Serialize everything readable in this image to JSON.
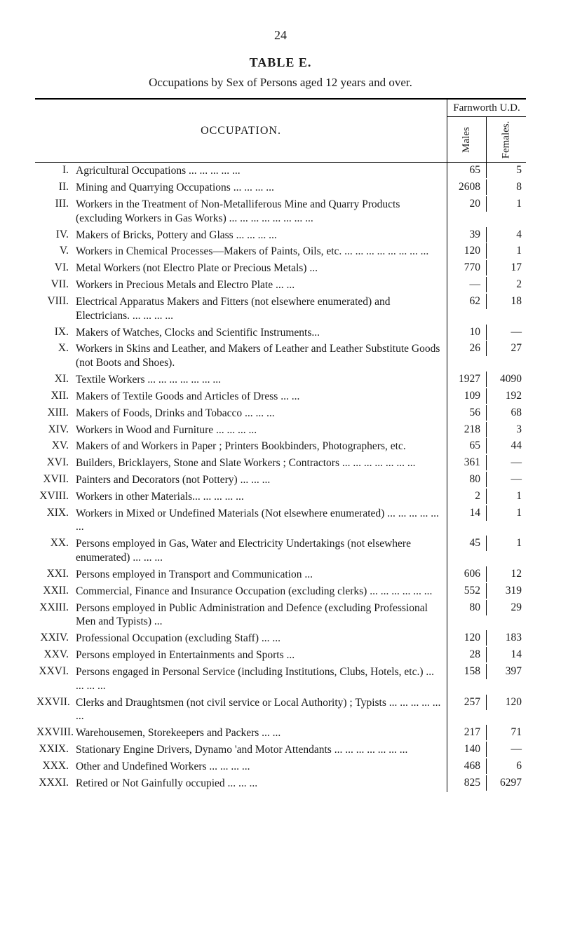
{
  "page": {
    "number": "24",
    "table_name": "TABLE  E.",
    "caption": "Occupations by Sex of Persons aged 12 years and over."
  },
  "headers": {
    "occupation": "OCCUPATION.",
    "region": "Farnworth U.D.",
    "males": "Males",
    "females": "Females."
  },
  "layout": {
    "col_widths": {
      "roman": 56,
      "males": 56,
      "females": 56
    },
    "font_size_body": 15.5,
    "font_family": "Times New Roman",
    "border_color": "#000000",
    "background_color": "#ffffff"
  },
  "rows": [
    {
      "n": "I.",
      "t": "Agricultural Occupations  ...  ...  ...  ...  ...",
      "m": "65",
      "f": "5"
    },
    {
      "n": "II.",
      "t": "Mining and Quarrying Occupations ...  ...  ...  ...",
      "m": "2608",
      "f": "8"
    },
    {
      "n": "III.",
      "t": "Workers in the Treatment of Non-Metalliferous Mine and Quarry Products (excluding Workers in Gas Works) ...  ...  ...  ...  ...  ...  ...  ...",
      "m": "20",
      "f": "1"
    },
    {
      "n": "IV.",
      "t": "Makers of Bricks, Pottery and Glass ...  ...  ...  ...",
      "m": "39",
      "f": "4"
    },
    {
      "n": "V.",
      "t": "Workers in Chemical Processes—Makers of Paints, Oils, etc.  ...  ...  ...  ...  ...  ...  ...  ...",
      "m": "120",
      "f": "1"
    },
    {
      "n": "VI.",
      "t": "Metal Workers (not Electro Plate or Precious Metals)  ...",
      "m": "770",
      "f": "17"
    },
    {
      "n": "VII.",
      "t": "Workers in Precious Metals and Electro Plate  ...  ...",
      "m": "—",
      "f": "2"
    },
    {
      "n": "VIII.",
      "t": "Electrical Apparatus Makers and Fitters (not elsewhere enumerated) and Electricians.  ...  ...  ...  ...",
      "m": "62",
      "f": "18"
    },
    {
      "n": "IX.",
      "t": "Makers of Watches, Clocks and Scientific Instruments...",
      "m": "10",
      "f": "—"
    },
    {
      "n": "X.",
      "t": "Workers in Skins and Leather, and Makers of Leather and Leather Substitute Goods (not Boots and Shoes).",
      "m": "26",
      "f": "27"
    },
    {
      "n": "XI.",
      "t": "Textile Workers ...  ...  ...  ...  ...  ...  ...",
      "m": "1927",
      "f": "4090"
    },
    {
      "n": "XII.",
      "t": "Makers of Textile Goods and Articles of Dress ...  ...",
      "m": "109",
      "f": "192"
    },
    {
      "n": "XIII.",
      "t": "Makers of Foods, Drinks and Tobacco  ...  ...  ...",
      "m": "56",
      "f": "68"
    },
    {
      "n": "XIV.",
      "t": "Workers in Wood and Furniture  ...  ...  ...  ...",
      "m": "218",
      "f": "3"
    },
    {
      "n": "XV.",
      "t": "Makers of and Workers in Paper ; Printers Bookbinders, Photographers, etc.",
      "m": "65",
      "f": "44"
    },
    {
      "n": "XVI.",
      "t": "Builders, Bricklayers, Stone and Slate Workers ; Contractors  ...  ...  ...  ...  ...  ...  ...",
      "m": "361",
      "f": "—"
    },
    {
      "n": "XVII.",
      "t": "Painters and Decorators (not Pottery)  ...  ...  ...",
      "m": "80",
      "f": "—"
    },
    {
      "n": "XVIII.",
      "t": "Workers in other Materials...  ...  ...  ...  ...",
      "m": "2",
      "f": "1"
    },
    {
      "n": "XIX.",
      "t": "Workers in Mixed or Undefined Materials (Not elsewhere enumerated) ...  ...  ...  ...  ...  ...",
      "m": "14",
      "f": "1"
    },
    {
      "n": "XX.",
      "t": "Persons employed in Gas, Water and Electricity Undertakings (not elsewhere enumerated)  ...  ...  ...",
      "m": "45",
      "f": "1"
    },
    {
      "n": "XXI.",
      "t": "Persons employed in Transport and Communication ...",
      "m": "606",
      "f": "12"
    },
    {
      "n": "XXII.",
      "t": "Commercial, Finance and Insurance Occupation (excluding clerks)  ...  ...  ...  ...  ...  ...",
      "m": "552",
      "f": "319"
    },
    {
      "n": "XXIII.",
      "t": "Persons employed in Public Administration and Defence (excluding Professional Men and Typists)  ...",
      "m": "80",
      "f": "29"
    },
    {
      "n": "XXIV.",
      "t": "Professional Occupation (excluding Staff)  ...  ...",
      "m": "120",
      "f": "183"
    },
    {
      "n": "XXV.",
      "t": "Persons employed in Entertainments and Sports  ...",
      "m": "28",
      "f": "14"
    },
    {
      "n": "XXVI.",
      "t": "Persons engaged in Personal Service (including Institutions, Clubs, Hotels, etc.) ...  ...  ...  ...",
      "m": "158",
      "f": "397"
    },
    {
      "n": "XXVII.",
      "t": "Clerks and Draughtsmen (not civil service or Local Authority) ; Typists ...  ...  ...  ...  ...  ...",
      "m": "257",
      "f": "120"
    },
    {
      "n": "XXVIII.",
      "t": "Warehousemen, Storekeepers and Packers ...  ...",
      "m": "217",
      "f": "71"
    },
    {
      "n": "XXIX.",
      "t": "Stationary Engine Drivers, Dynamo 'and Motor Attendants  ...  ...  ...  ...  ...  ...  ...",
      "m": "140",
      "f": "—"
    },
    {
      "n": "XXX.",
      "t": "Other and Undefined Workers  ...  ...  ...  ...",
      "m": "468",
      "f": "6"
    },
    {
      "n": "XXXI.",
      "t": "Retired or Not Gainfully occupied  ...  ...  ...",
      "m": "825",
      "f": "6297"
    }
  ]
}
